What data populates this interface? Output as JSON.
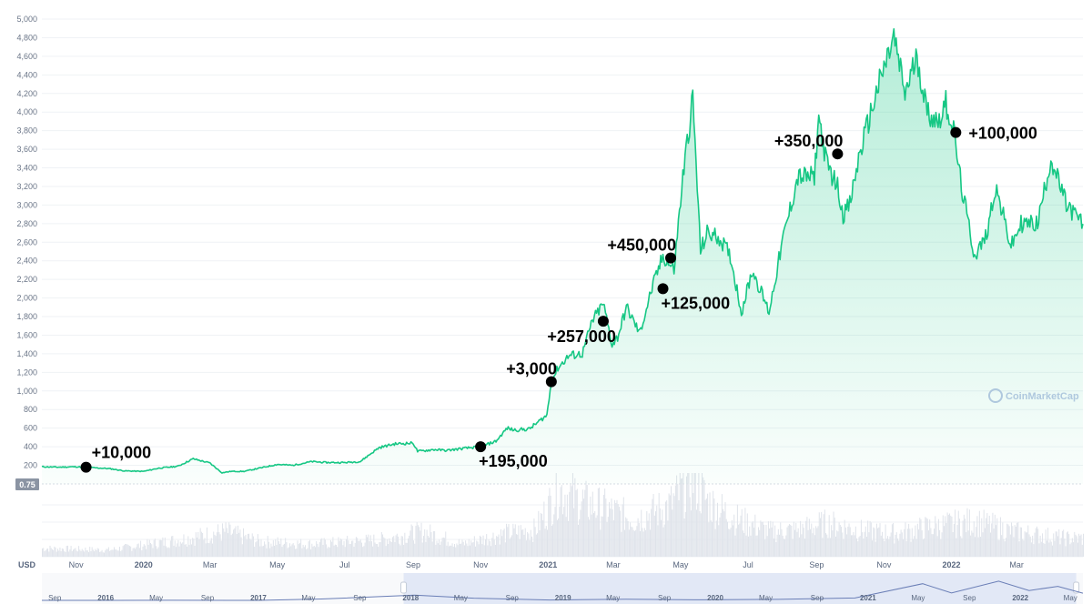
{
  "chart_data": {
    "type": "area",
    "currency": "USD",
    "last_value_badge": "0.75",
    "watermark": "CoinMarketCap",
    "y_ticks": [
      "200",
      "400",
      "600",
      "800",
      "1,000",
      "1,200",
      "1,400",
      "1,600",
      "1,800",
      "2,000",
      "2,200",
      "2,400",
      "2,600",
      "2,800",
      "3,000",
      "3,200",
      "3,400",
      "3,600",
      "3,800",
      "4,000",
      "4,200",
      "4,400",
      "4,600",
      "4,800",
      "5,000"
    ],
    "ylim": [
      0,
      5000
    ],
    "x_ticks": [
      {
        "date": "2019-11-01",
        "label": "Nov"
      },
      {
        "date": "2020-01-01",
        "label": "2020"
      },
      {
        "date": "2020-03-01",
        "label": "Mar"
      },
      {
        "date": "2020-05-01",
        "label": "May"
      },
      {
        "date": "2020-07-01",
        "label": "Jul"
      },
      {
        "date": "2020-09-01",
        "label": "Sep"
      },
      {
        "date": "2020-11-01",
        "label": "Nov"
      },
      {
        "date": "2021-01-01",
        "label": "2021"
      },
      {
        "date": "2021-03-01",
        "label": "Mar"
      },
      {
        "date": "2021-05-01",
        "label": "May"
      },
      {
        "date": "2021-07-01",
        "label": "Jul"
      },
      {
        "date": "2021-09-01",
        "label": "Sep"
      },
      {
        "date": "2021-11-01",
        "label": "Nov"
      },
      {
        "date": "2022-01-01",
        "label": "2022"
      },
      {
        "date": "2022-03-01",
        "label": "Mar"
      }
    ],
    "x_range": [
      "2019-10-01",
      "2022-04-30"
    ],
    "series": [
      {
        "color": "#16c784",
        "points": [
          [
            "2019-10-01",
            185
          ],
          [
            "2019-10-15",
            180
          ],
          [
            "2019-11-01",
            185
          ],
          [
            "2019-11-15",
            175
          ],
          [
            "2019-12-01",
            165
          ],
          [
            "2019-12-15",
            140
          ],
          [
            "2020-01-01",
            135
          ],
          [
            "2020-01-15",
            170
          ],
          [
            "2020-02-01",
            190
          ],
          [
            "2020-02-15",
            270
          ],
          [
            "2020-03-01",
            225
          ],
          [
            "2020-03-12",
            120
          ],
          [
            "2020-03-20",
            135
          ],
          [
            "2020-04-01",
            135
          ],
          [
            "2020-04-15",
            170
          ],
          [
            "2020-05-01",
            210
          ],
          [
            "2020-05-15",
            200
          ],
          [
            "2020-06-01",
            240
          ],
          [
            "2020-06-15",
            230
          ],
          [
            "2020-07-01",
            230
          ],
          [
            "2020-07-15",
            240
          ],
          [
            "2020-08-01",
            390
          ],
          [
            "2020-08-15",
            430
          ],
          [
            "2020-09-01",
            440
          ],
          [
            "2020-09-05",
            350
          ],
          [
            "2020-09-20",
            370
          ],
          [
            "2020-10-01",
            360
          ],
          [
            "2020-10-15",
            380
          ],
          [
            "2020-11-01",
            400
          ],
          [
            "2020-11-15",
            460
          ],
          [
            "2020-11-25",
            600
          ],
          [
            "2020-12-01",
            580
          ],
          [
            "2020-12-15",
            590
          ],
          [
            "2020-12-31",
            740
          ],
          [
            "2021-01-04",
            1100
          ],
          [
            "2021-01-10",
            1250
          ],
          [
            "2021-01-20",
            1380
          ],
          [
            "2021-02-01",
            1400
          ],
          [
            "2021-02-10",
            1750
          ],
          [
            "2021-02-20",
            1940
          ],
          [
            "2021-02-28",
            1500
          ],
          [
            "2021-03-05",
            1580
          ],
          [
            "2021-03-13",
            1900
          ],
          [
            "2021-03-25",
            1620
          ],
          [
            "2021-04-05",
            2100
          ],
          [
            "2021-04-15",
            2450
          ],
          [
            "2021-04-25",
            2300
          ],
          [
            "2021-05-03",
            3300
          ],
          [
            "2021-05-12",
            4150
          ],
          [
            "2021-05-19",
            2500
          ],
          [
            "2021-05-25",
            2700
          ],
          [
            "2021-06-05",
            2650
          ],
          [
            "2021-06-15",
            2450
          ],
          [
            "2021-06-25",
            1850
          ],
          [
            "2021-07-05",
            2300
          ],
          [
            "2021-07-20",
            1850
          ],
          [
            "2021-08-01",
            2600
          ],
          [
            "2021-08-15",
            3300
          ],
          [
            "2021-08-30",
            3300
          ],
          [
            "2021-09-03",
            3950
          ],
          [
            "2021-09-10",
            3450
          ],
          [
            "2021-09-20",
            3200
          ],
          [
            "2021-09-25",
            2900
          ],
          [
            "2021-10-01",
            3000
          ],
          [
            "2021-10-10",
            3550
          ],
          [
            "2021-10-25",
            4200
          ],
          [
            "2021-11-10",
            4800
          ],
          [
            "2021-11-20",
            4200
          ],
          [
            "2021-12-01",
            4600
          ],
          [
            "2021-12-10",
            4000
          ],
          [
            "2021-12-20",
            3900
          ],
          [
            "2021-12-27",
            4100
          ],
          [
            "2022-01-03",
            3800
          ],
          [
            "2022-01-10",
            3200
          ],
          [
            "2022-01-22",
            2450
          ],
          [
            "2022-02-01",
            2650
          ],
          [
            "2022-02-10",
            3200
          ],
          [
            "2022-02-24",
            2550
          ],
          [
            "2022-03-05",
            2800
          ],
          [
            "2022-03-20",
            2800
          ],
          [
            "2022-04-01",
            3500
          ],
          [
            "2022-04-15",
            3000
          ],
          [
            "2022-04-30",
            2800
          ]
        ]
      }
    ],
    "annotations": [
      {
        "date": "2019-11-10",
        "value": 180,
        "label": "+10,000",
        "side": "above-right"
      },
      {
        "date": "2020-11-01",
        "value": 400,
        "label": "+195,000",
        "side": "below-right"
      },
      {
        "date": "2021-01-04",
        "value": 1100,
        "label": "+3,000",
        "side": "above-left"
      },
      {
        "date": "2021-02-20",
        "value": 1750,
        "label": "+257,000",
        "side": "below-left"
      },
      {
        "date": "2021-04-15",
        "value": 2100,
        "label": "+125,000",
        "side": "below-right"
      },
      {
        "date": "2021-04-22",
        "value": 2430,
        "label": "+450,000",
        "side": "above-left"
      },
      {
        "date": "2021-09-20",
        "value": 3550,
        "label": "+350,000",
        "side": "above-left"
      },
      {
        "date": "2022-01-05",
        "value": 3780,
        "label": "+100,000",
        "side": "right"
      }
    ],
    "volume": [
      [
        "2019-10-01",
        0.1
      ],
      [
        "2019-12-01",
        0.08
      ],
      [
        "2020-02-01",
        0.2
      ],
      [
        "2020-03-15",
        0.3
      ],
      [
        "2020-04-15",
        0.18
      ],
      [
        "2020-06-01",
        0.15
      ],
      [
        "2020-08-01",
        0.2
      ],
      [
        "2020-09-10",
        0.3
      ],
      [
        "2020-10-15",
        0.15
      ],
      [
        "2020-11-25",
        0.28
      ],
      [
        "2020-12-20",
        0.32
      ],
      [
        "2021-01-10",
        0.8
      ],
      [
        "2021-02-01",
        0.65
      ],
      [
        "2021-02-25",
        0.55
      ],
      [
        "2021-03-20",
        0.45
      ],
      [
        "2021-04-20",
        0.6
      ],
      [
        "2021-05-12",
        0.95
      ],
      [
        "2021-05-25",
        0.65
      ],
      [
        "2021-06-20",
        0.45
      ],
      [
        "2021-07-20",
        0.3
      ],
      [
        "2021-08-15",
        0.32
      ],
      [
        "2021-09-10",
        0.4
      ],
      [
        "2021-10-15",
        0.3
      ],
      [
        "2021-11-15",
        0.28
      ],
      [
        "2021-12-10",
        0.35
      ],
      [
        "2022-01-22",
        0.42
      ],
      [
        "2022-02-25",
        0.3
      ],
      [
        "2022-04-15",
        0.22
      ]
    ],
    "navigator": {
      "x_range": [
        "2015-08-01",
        "2022-05-31"
      ],
      "ticks": [
        {
          "date": "2015-09-01",
          "label": "Sep",
          "bold": false
        },
        {
          "date": "2016-01-01",
          "label": "2016",
          "bold": true
        },
        {
          "date": "2016-05-01",
          "label": "May",
          "bold": false
        },
        {
          "date": "2016-09-01",
          "label": "Sep",
          "bold": false
        },
        {
          "date": "2017-01-01",
          "label": "2017",
          "bold": true
        },
        {
          "date": "2017-05-01",
          "label": "May",
          "bold": false
        },
        {
          "date": "2017-09-01",
          "label": "Sep",
          "bold": false
        },
        {
          "date": "2018-01-01",
          "label": "2018",
          "bold": true
        },
        {
          "date": "2018-05-01",
          "label": "May",
          "bold": false
        },
        {
          "date": "2018-09-01",
          "label": "Sep",
          "bold": false
        },
        {
          "date": "2019-01-01",
          "label": "2019",
          "bold": true
        },
        {
          "date": "2019-05-01",
          "label": "May",
          "bold": false
        },
        {
          "date": "2019-09-01",
          "label": "Sep",
          "bold": false
        },
        {
          "date": "2020-01-01",
          "label": "2020",
          "bold": true
        },
        {
          "date": "2020-05-01",
          "label": "May",
          "bold": false
        },
        {
          "date": "2020-09-01",
          "label": "Sep",
          "bold": false
        },
        {
          "date": "2021-01-01",
          "label": "2021",
          "bold": true
        },
        {
          "date": "2021-05-01",
          "label": "May",
          "bold": false
        },
        {
          "date": "2021-09-01",
          "label": "Sep",
          "bold": false
        },
        {
          "date": "2022-01-01",
          "label": "2022",
          "bold": true
        },
        {
          "date": "2022-05-01",
          "label": "May",
          "bold": false
        }
      ],
      "selected_range": [
        "2017-12-15",
        "2022-05-15"
      ],
      "points": [
        [
          "2015-08-01",
          2
        ],
        [
          "2016-01-01",
          2
        ],
        [
          "2016-06-01",
          14
        ],
        [
          "2017-01-01",
          10
        ],
        [
          "2017-06-01",
          350
        ],
        [
          "2018-01-10",
          1300
        ],
        [
          "2018-06-01",
          550
        ],
        [
          "2018-12-01",
          100
        ],
        [
          "2019-06-01",
          300
        ],
        [
          "2019-12-01",
          130
        ],
        [
          "2020-06-01",
          240
        ],
        [
          "2020-12-01",
          600
        ],
        [
          "2021-05-12",
          4150
        ],
        [
          "2021-07-20",
          1850
        ],
        [
          "2021-11-10",
          4800
        ],
        [
          "2022-01-22",
          2450
        ],
        [
          "2022-04-01",
          3500
        ],
        [
          "2022-05-31",
          1800
        ]
      ]
    },
    "colors": {
      "line": "#16c784",
      "fill_top": "#16c784",
      "grid": "#eff2f5",
      "volume": "#dfe3ea",
      "navigator_line": "#6a7eb6",
      "navigator_selection": "#e2e8f6",
      "annotation_marker": "#000000",
      "badge": "#8b94a3"
    }
  }
}
